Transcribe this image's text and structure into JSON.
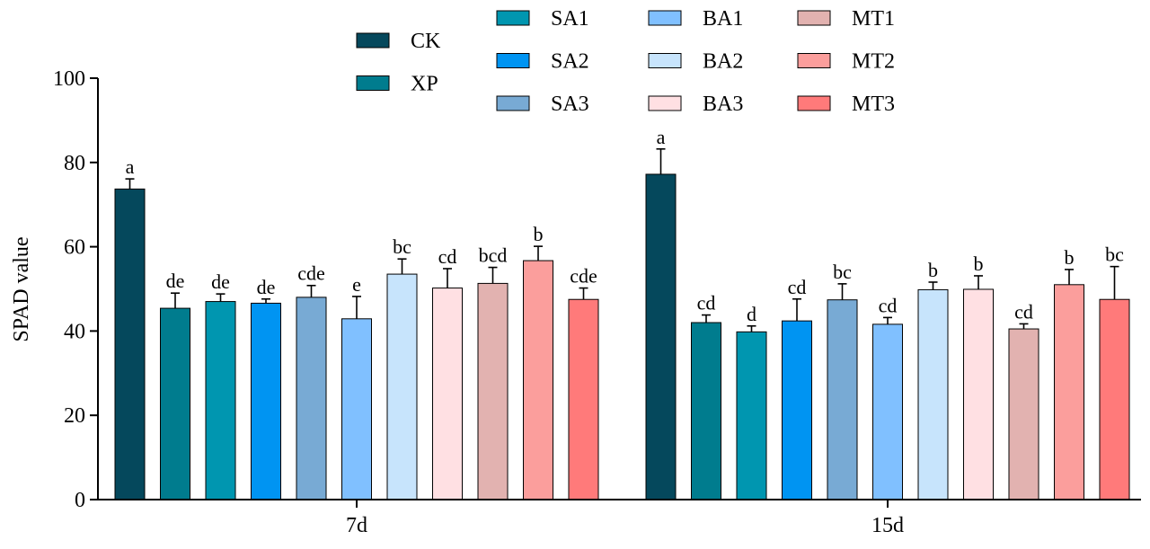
{
  "chart_data": {
    "type": "bar",
    "xlabel": "",
    "ylabel": "SPAD value",
    "ylim": [
      0,
      100
    ],
    "yticks": [
      "0",
      "20",
      "40",
      "60",
      "80",
      "100"
    ],
    "categories": [
      "7d",
      "15d"
    ],
    "legend_position": "top",
    "series": [
      {
        "name": "CK",
        "color": "#05485C",
        "values": [
          73.7,
          77.2
        ],
        "errors": [
          2.4,
          6.0
        ],
        "letters": [
          "a",
          "a"
        ]
      },
      {
        "name": "XP",
        "color": "#007C8E",
        "values": [
          45.4,
          42.0
        ],
        "errors": [
          3.6,
          1.8
        ],
        "letters": [
          "de",
          "cd"
        ]
      },
      {
        "name": "SA1",
        "color": "#0096B0",
        "values": [
          47.0,
          39.8
        ],
        "errors": [
          1.8,
          1.4
        ],
        "letters": [
          "de",
          "d"
        ]
      },
      {
        "name": "SA2",
        "color": "#0094F2",
        "values": [
          46.6,
          42.4
        ],
        "errors": [
          1.0,
          5.2
        ],
        "letters": [
          "de",
          "cd"
        ]
      },
      {
        "name": "SA3",
        "color": "#78AAD4",
        "values": [
          48.0,
          47.4
        ],
        "errors": [
          2.8,
          3.8
        ],
        "letters": [
          "cde",
          "bc"
        ]
      },
      {
        "name": "BA1",
        "color": "#80C0FF",
        "values": [
          42.9,
          41.6
        ],
        "errors": [
          5.3,
          1.6
        ],
        "letters": [
          "e",
          "cd"
        ]
      },
      {
        "name": "BA2",
        "color": "#C7E4FC",
        "values": [
          53.5,
          49.8
        ],
        "errors": [
          3.6,
          1.8
        ],
        "letters": [
          "bc",
          "b"
        ]
      },
      {
        "name": "BA3",
        "color": "#FFE0E3",
        "values": [
          50.2,
          49.9
        ],
        "errors": [
          4.6,
          3.2
        ],
        "letters": [
          "cd",
          "b"
        ]
      },
      {
        "name": "MT1",
        "color": "#E2B2B0",
        "values": [
          51.3,
          40.5
        ],
        "errors": [
          3.8,
          1.2
        ],
        "letters": [
          "bcd",
          "cd"
        ]
      },
      {
        "name": "MT2",
        "color": "#FB9E9C",
        "values": [
          56.7,
          51.0
        ],
        "errors": [
          3.4,
          3.6
        ],
        "letters": [
          "b",
          "b"
        ]
      },
      {
        "name": "MT3",
        "color": "#FF7A7A",
        "values": [
          47.5,
          47.5
        ],
        "errors": [
          2.7,
          7.8
        ],
        "letters": [
          "cde",
          "bc"
        ]
      }
    ]
  }
}
